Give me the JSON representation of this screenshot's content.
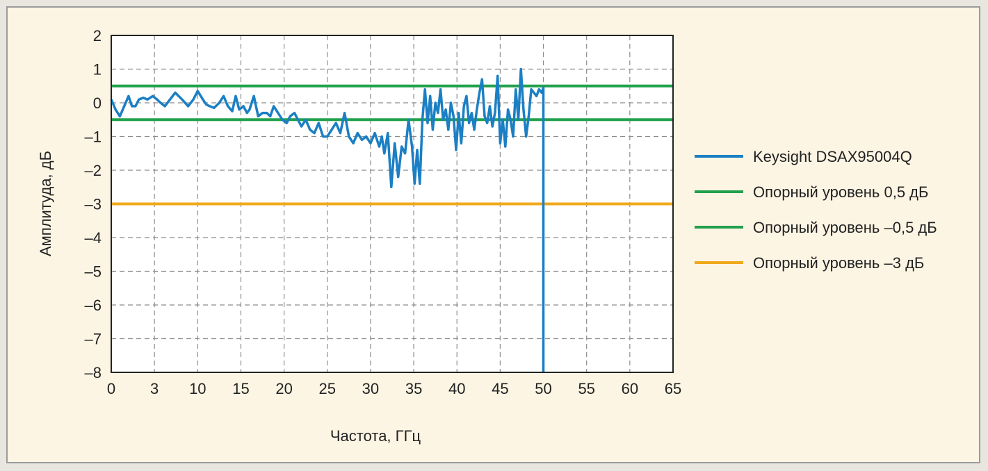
{
  "chart_data": {
    "type": "line",
    "xlabel": "Частота, ГГц",
    "ylabel": "Амплитуда, дБ",
    "x_ticks": [
      "0",
      "3",
      "10",
      "15",
      "20",
      "25",
      "30",
      "35",
      "40",
      "45",
      "50",
      "55",
      "60",
      "65"
    ],
    "y_ticks": [
      "2",
      "1",
      "0",
      "–1",
      "–2",
      "–3",
      "–4",
      "–5",
      "–6",
      "–7",
      "–8"
    ],
    "y_tick_values": [
      2,
      1,
      0,
      -1,
      -2,
      -3,
      -4,
      -5,
      -6,
      -7,
      -8
    ],
    "xlim": [
      0,
      65
    ],
    "ylim": [
      -8,
      2
    ],
    "grid": true,
    "legend_position": "right",
    "colors": {
      "measured": "#1b7fc4",
      "ref_green": "#21a04d",
      "ref_orange": "#f0a91c",
      "background": "#fdf5e4",
      "frame": "#9b9b9b"
    },
    "series": [
      {
        "name": "Keysight DSAX95004Q",
        "color": "#1b7fc4",
        "x": [
          0,
          0.5,
          1,
          1.5,
          2,
          2.4,
          2.8,
          3.2,
          3.7,
          4.2,
          4.8,
          5.3,
          5.7,
          6.2,
          6.8,
          7.4,
          8.2,
          8.9,
          9.5,
          10,
          10.6,
          11,
          11.4,
          11.9,
          12.5,
          13,
          13.5,
          14,
          14.4,
          14.8,
          15.3,
          15.7,
          16,
          16.5,
          17,
          17.5,
          18,
          18.4,
          18.8,
          19.3,
          19.8,
          20.3,
          20.7,
          21.2,
          21.6,
          22,
          22.5,
          23,
          23.5,
          24,
          24.5,
          25,
          25.5,
          26,
          26.5,
          27,
          27.5,
          28,
          28.5,
          29,
          29.5,
          30,
          30.5,
          31,
          31.3,
          31.6,
          32,
          32.4,
          32.8,
          33.2,
          33.6,
          34,
          34.4,
          34.8,
          35.1,
          35.4,
          35.7,
          36,
          36.3,
          36.6,
          36.9,
          37.2,
          37.5,
          37.8,
          38.1,
          38.4,
          38.7,
          39,
          39.3,
          39.6,
          39.9,
          40.2,
          40.5,
          40.8,
          41.1,
          41.4,
          41.7,
          42,
          42.3,
          42.6,
          42.9,
          43.2,
          43.5,
          43.8,
          44.1,
          44.4,
          44.7,
          45,
          45.3,
          45.6,
          45.9,
          46.2,
          46.5,
          46.8,
          47.1,
          47.4,
          47.7,
          48,
          48.3,
          48.6,
          48.9,
          49.2,
          49.5,
          49.8,
          50,
          50,
          50
        ],
        "values": [
          0.1,
          -0.2,
          -0.4,
          -0.1,
          0.2,
          -0.1,
          -0.1,
          0.1,
          0.15,
          0.1,
          0.2,
          0.1,
          0.0,
          -0.1,
          0.1,
          0.3,
          0.1,
          -0.1,
          0.1,
          0.35,
          0.1,
          -0.05,
          -0.1,
          -0.15,
          0.0,
          0.2,
          -0.1,
          -0.25,
          0.2,
          -0.2,
          -0.1,
          -0.3,
          -0.2,
          0.2,
          -0.4,
          -0.3,
          -0.3,
          -0.4,
          -0.1,
          -0.3,
          -0.5,
          -0.6,
          -0.4,
          -0.3,
          -0.5,
          -0.7,
          -0.5,
          -0.8,
          -0.9,
          -0.6,
          -1.0,
          -1.0,
          -0.8,
          -0.6,
          -0.9,
          -0.3,
          -1.0,
          -1.2,
          -0.9,
          -1.1,
          -1.0,
          -1.2,
          -0.9,
          -1.3,
          -1.0,
          -1.5,
          -0.9,
          -2.5,
          -1.2,
          -2.2,
          -1.3,
          -1.5,
          -0.5,
          -1.3,
          -2.4,
          -1.4,
          -2.4,
          -0.5,
          0.4,
          -0.6,
          0.2,
          -0.8,
          0.0,
          -0.3,
          0.4,
          -0.5,
          -0.2,
          -0.8,
          0.0,
          -0.4,
          -1.4,
          -0.3,
          -1.2,
          -0.1,
          0.2,
          -0.6,
          -0.3,
          -0.8,
          -0.2,
          0.3,
          0.7,
          -0.4,
          -0.6,
          -0.1,
          -0.7,
          -0.3,
          0.8,
          -1.2,
          -0.5,
          -1.3,
          -0.2,
          -0.5,
          -1.0,
          0.4,
          -0.5,
          1.0,
          -0.2,
          -1.0,
          -0.4,
          0.4,
          0.3,
          0.2,
          0.4,
          0.3,
          0.45,
          -5,
          -8
        ]
      },
      {
        "name": "Опорный уровень 0,5 дБ",
        "color": "#21a04d",
        "values": [
          0.5
        ]
      },
      {
        "name": "Опорный уровень –0,5 дБ",
        "color": "#21a04d",
        "values": [
          -0.5
        ]
      },
      {
        "name": "Опорный уровень –3 дБ",
        "color": "#f0a91c",
        "values": [
          -3
        ]
      }
    ]
  }
}
